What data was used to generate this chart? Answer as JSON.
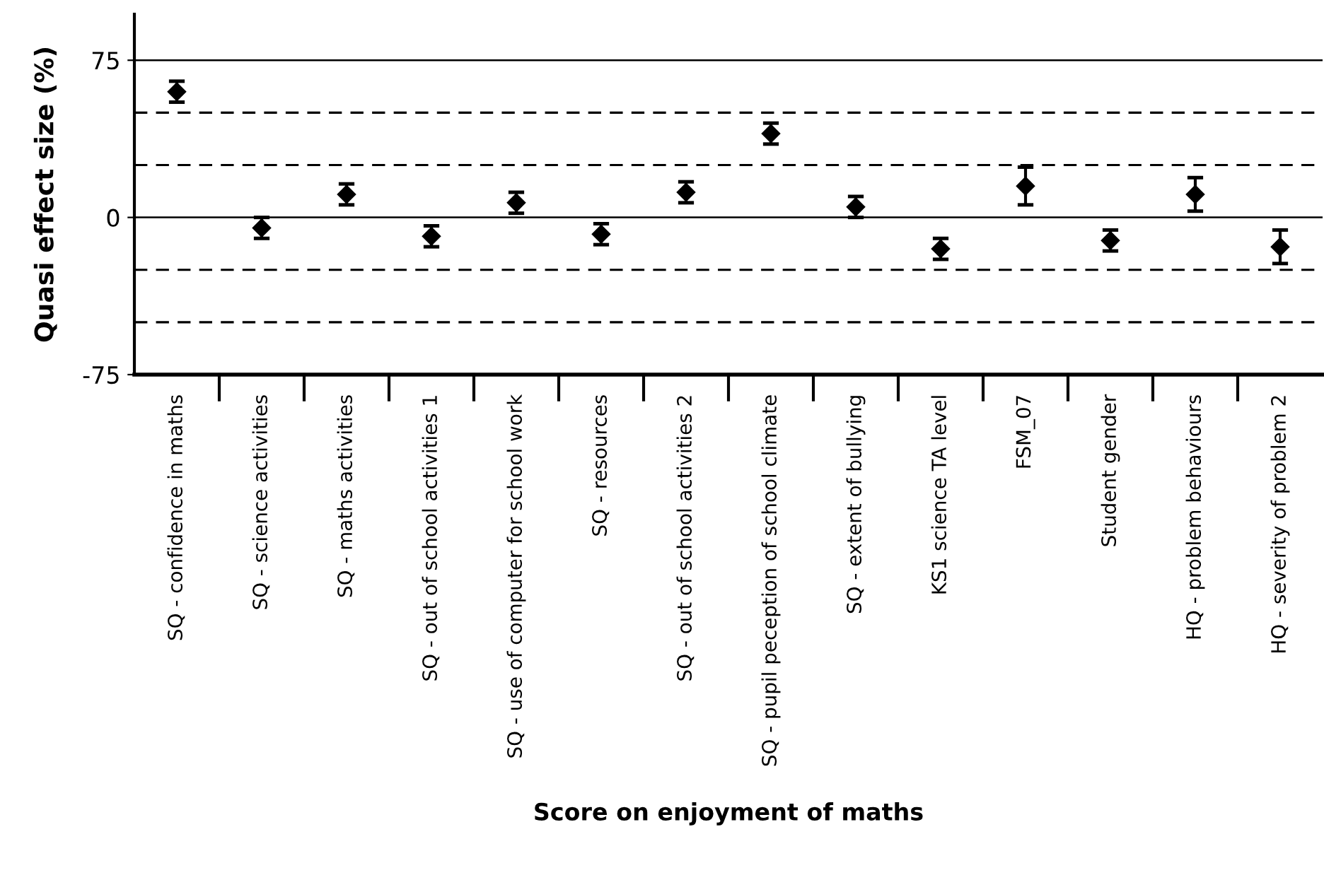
{
  "chart_data": {
    "type": "scatter",
    "xlabel": "Score on enjoyment of maths",
    "ylabel": "Quasi effect size (%)",
    "categories": [
      "SQ - confidence in maths",
      "SQ - science activities",
      "SQ - maths activities",
      "SQ - out of school activities 1",
      "SQ - use of computer for school work",
      "SQ - resources",
      "SQ - out of school activities 2",
      "SQ - pupil peception of school climate",
      "SQ - extent of bullying",
      "KS1 science TA level",
      "FSM_07",
      "Student gender",
      "HQ - problem behaviours",
      "HQ - severity of problem 2"
    ],
    "series": [
      {
        "color": "#000000",
        "values": [
          60,
          -5,
          11,
          -9,
          7,
          -8,
          12,
          40,
          5,
          -15,
          15,
          -11,
          11,
          -14
        ],
        "errors": [
          5,
          5,
          5,
          5,
          5,
          5,
          5,
          5,
          5,
          5,
          9,
          5,
          8,
          8
        ]
      }
    ],
    "marker": "diamond",
    "ylim": [
      -75,
      97
    ],
    "yticks": [
      -75,
      0,
      75
    ],
    "grid": "y",
    "legend": false,
    "ref_lines": [
      {
        "axis": "y",
        "value": 50,
        "line_style": "dashed",
        "color": "#000000"
      },
      {
        "axis": "y",
        "value": 25,
        "line_style": "dashed",
        "color": "#000000"
      },
      {
        "axis": "y",
        "value": -25,
        "line_style": "dashed",
        "color": "#000000"
      },
      {
        "axis": "y",
        "value": -50,
        "line_style": "dashed",
        "color": "#000000"
      }
    ]
  }
}
